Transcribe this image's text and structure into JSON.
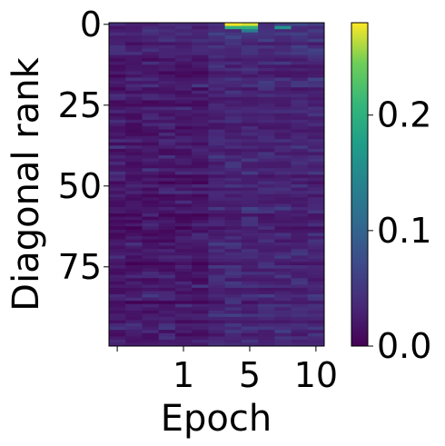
{
  "chart_data": {
    "type": "heatmap",
    "title": "",
    "xlabel": "Epoch",
    "ylabel": "Diagonal rank",
    "x_ticks": [
      {
        "col": 4,
        "label": "1"
      },
      {
        "col": 8,
        "label": "5"
      },
      {
        "col": 12,
        "label": "10"
      }
    ],
    "y_ticks": [
      {
        "row": 0,
        "label": "0"
      },
      {
        "row": 25,
        "label": "25"
      },
      {
        "row": 50,
        "label": "50"
      },
      {
        "row": 75,
        "label": "75"
      }
    ],
    "n_rows": 100,
    "n_cols": 13,
    "colorbar": {
      "min": 0.0,
      "max": 0.28,
      "ticks": [
        {
          "value": 0.0,
          "label": "0.0"
        },
        {
          "value": 0.1,
          "label": "0.1"
        },
        {
          "value": 0.2,
          "label": "0.2"
        }
      ],
      "colormap": "viridis"
    },
    "notable_values": [
      {
        "row": 0,
        "col": 7,
        "value": 0.28
      },
      {
        "row": 0,
        "col": 8,
        "value": 0.27
      },
      {
        "row": 1,
        "col": 7,
        "value": 0.2
      },
      {
        "row": 1,
        "col": 8,
        "value": 0.2
      },
      {
        "row": 1,
        "col": 10,
        "value": 0.16
      },
      {
        "row": 2,
        "col": 8,
        "value": 0.13
      }
    ],
    "typical_range": [
      0.0,
      0.06
    ]
  }
}
